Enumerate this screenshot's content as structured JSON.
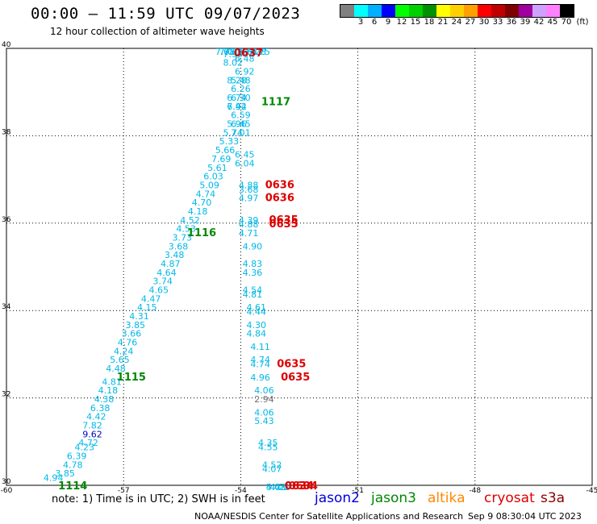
{
  "header": {
    "title": "00:00 – 11:59 UTC 09/07/2023",
    "subtitle": "12 hour collection of altimeter wave heights"
  },
  "legend": {
    "unit": "(ft)",
    "bins": [
      {
        "label": "",
        "color": "#808080"
      },
      {
        "label": "3",
        "color": "#00ffff"
      },
      {
        "label": "6",
        "color": "#00b0ff"
      },
      {
        "label": "9",
        "color": "#0000ff"
      },
      {
        "label": "12",
        "color": "#00ff00"
      },
      {
        "label": "15",
        "color": "#00d000"
      },
      {
        "label": "18",
        "color": "#009000"
      },
      {
        "label": "21",
        "color": "#ffff00"
      },
      {
        "label": "24",
        "color": "#ffd000"
      },
      {
        "label": "27",
        "color": "#ffa000"
      },
      {
        "label": "30",
        "color": "#ff0000"
      },
      {
        "label": "33",
        "color": "#c00000"
      },
      {
        "label": "36",
        "color": "#800000"
      },
      {
        "label": "39",
        "color": "#a000a0"
      },
      {
        "label": "42",
        "color": "#d0a0ff"
      },
      {
        "label": "45",
        "color": "#ff80ff"
      },
      {
        "label": "70",
        "color": "#000000"
      }
    ]
  },
  "axes": {
    "x_ticks": [
      "-60",
      "-57",
      "-54",
      "-51",
      "-48",
      "-45"
    ],
    "y_ticks": [
      "40",
      "38",
      "36",
      "34",
      "32",
      "30"
    ],
    "x_range": [
      -60,
      -45
    ],
    "y_range": [
      30,
      40
    ]
  },
  "chart_data": {
    "type": "scatter",
    "passes": [
      {
        "color": "#00b8e8",
        "points": [
          {
            "x": -58.8,
            "y": 30.1,
            "v": "4.94"
          },
          {
            "x": -58.5,
            "y": 30.2,
            "v": "3.85"
          },
          {
            "x": -58.3,
            "y": 30.4,
            "v": "4.78"
          },
          {
            "x": -58.2,
            "y": 30.6,
            "v": "6.39"
          },
          {
            "x": -58.0,
            "y": 30.8,
            "v": "4.23"
          },
          {
            "x": -57.9,
            "y": 30.9,
            "v": "4.72"
          },
          {
            "x": -57.8,
            "y": 31.3,
            "v": "7.82"
          },
          {
            "x": -57.7,
            "y": 31.5,
            "v": "4.42"
          },
          {
            "x": -57.6,
            "y": 31.7,
            "v": "6.38"
          },
          {
            "x": -57.5,
            "y": 31.9,
            "v": "4.38"
          },
          {
            "x": -57.4,
            "y": 32.1,
            "v": "4.18"
          },
          {
            "x": -57.3,
            "y": 32.3,
            "v": "4.81"
          },
          {
            "x": -57.2,
            "y": 32.6,
            "v": "4.48"
          },
          {
            "x": -57.1,
            "y": 32.8,
            "v": "5.65"
          },
          {
            "x": -57.0,
            "y": 33.0,
            "v": "4.24"
          },
          {
            "x": -56.9,
            "y": 33.2,
            "v": "4.76"
          },
          {
            "x": -56.8,
            "y": 33.4,
            "v": "3.66"
          },
          {
            "x": -56.7,
            "y": 33.6,
            "v": "3.85"
          },
          {
            "x": -56.6,
            "y": 33.8,
            "v": "4.31"
          },
          {
            "x": -56.4,
            "y": 34.0,
            "v": "4.15"
          },
          {
            "x": -56.3,
            "y": 34.2,
            "v": "4.47"
          },
          {
            "x": -56.1,
            "y": 34.4,
            "v": "4.65"
          },
          {
            "x": -56.0,
            "y": 34.6,
            "v": "3.74"
          },
          {
            "x": -55.9,
            "y": 34.8,
            "v": "4.64"
          },
          {
            "x": -55.8,
            "y": 35.0,
            "v": "4.87"
          },
          {
            "x": -55.7,
            "y": 35.2,
            "v": "3.48"
          },
          {
            "x": -55.6,
            "y": 35.4,
            "v": "3.68"
          },
          {
            "x": -55.5,
            "y": 35.6,
            "v": "3.73"
          },
          {
            "x": -55.4,
            "y": 35.8,
            "v": "4.53"
          },
          {
            "x": -55.3,
            "y": 36.0,
            "v": "4.52"
          },
          {
            "x": -55.1,
            "y": 36.2,
            "v": "4.18"
          },
          {
            "x": -55.0,
            "y": 36.4,
            "v": "4.70"
          },
          {
            "x": -54.9,
            "y": 36.6,
            "v": "4.74"
          },
          {
            "x": -54.8,
            "y": 36.8,
            "v": "5.09"
          },
          {
            "x": -54.7,
            "y": 37.0,
            "v": "6.03"
          },
          {
            "x": -54.6,
            "y": 37.2,
            "v": "5.61"
          },
          {
            "x": -54.5,
            "y": 37.4,
            "v": "7.69"
          },
          {
            "x": -54.4,
            "y": 37.6,
            "v": "5.66"
          },
          {
            "x": -54.3,
            "y": 37.8,
            "v": "5.33"
          },
          {
            "x": -54.2,
            "y": 38.0,
            "v": "5.74"
          },
          {
            "x": -54.1,
            "y": 38.2,
            "v": "5.96"
          },
          {
            "x": -54.0,
            "y": 38.4,
            "v": "6.59"
          },
          {
            "x": -54.1,
            "y": 38.6,
            "v": "7.42"
          },
          {
            "x": -54.1,
            "y": 38.8,
            "v": "6.74"
          },
          {
            "x": -54.1,
            "y": 39.2,
            "v": "8.28"
          },
          {
            "x": -54.2,
            "y": 39.6,
            "v": "8.02"
          },
          {
            "x": -54.2,
            "y": 39.8,
            "v": "7.90"
          },
          {
            "x": -54.2,
            "y": 40.0,
            "v": "7.79"
          },
          {
            "x": -54.3,
            "y": 40.3,
            "v": "7.01"
          },
          {
            "x": -54.4,
            "y": 40.5,
            "v": "7.08"
          }
        ]
      },
      {
        "color": "#00b8e8",
        "points": [
          {
            "x": -53.5,
            "y": 40.5,
            "v": "6.75"
          },
          {
            "x": -53.6,
            "y": 40.3,
            "v": "6.28"
          },
          {
            "x": -53.7,
            "y": 40.1,
            "v": "6.61"
          },
          {
            "x": -53.8,
            "y": 39.9,
            "v": "6.81"
          },
          {
            "x": -53.9,
            "y": 39.7,
            "v": "6.48"
          },
          {
            "x": -53.9,
            "y": 39.4,
            "v": "6.92"
          },
          {
            "x": -54.0,
            "y": 39.2,
            "v": "5.48"
          },
          {
            "x": -54.0,
            "y": 39.0,
            "v": "6.26"
          },
          {
            "x": -54.0,
            "y": 38.8,
            "v": "6.30"
          },
          {
            "x": -54.1,
            "y": 38.6,
            "v": "6.94"
          },
          {
            "x": -54.0,
            "y": 38.2,
            "v": "6.45"
          },
          {
            "x": -54.0,
            "y": 38.0,
            "v": "7.01"
          },
          {
            "x": -53.9,
            "y": 37.5,
            "v": "6.45"
          },
          {
            "x": -53.9,
            "y": 37.3,
            "v": "6.04"
          },
          {
            "x": -53.8,
            "y": 36.8,
            "v": "4.88"
          },
          {
            "x": -53.8,
            "y": 36.7,
            "v": "3.68"
          },
          {
            "x": -53.8,
            "y": 36.5,
            "v": "4.97"
          },
          {
            "x": -53.8,
            "y": 36.0,
            "v": "4.39"
          },
          {
            "x": -53.8,
            "y": 35.9,
            "v": "4.88"
          },
          {
            "x": -53.8,
            "y": 35.7,
            "v": "4.71"
          },
          {
            "x": -53.7,
            "y": 35.4,
            "v": "4.90"
          },
          {
            "x": -53.7,
            "y": 35.0,
            "v": "4.83"
          },
          {
            "x": -53.7,
            "y": 34.8,
            "v": "4.36"
          },
          {
            "x": -53.7,
            "y": 34.4,
            "v": "4.54"
          },
          {
            "x": -53.7,
            "y": 34.3,
            "v": "4.81"
          },
          {
            "x": -53.6,
            "y": 34.0,
            "v": "4.61"
          },
          {
            "x": -53.6,
            "y": 33.9,
            "v": "4.44"
          },
          {
            "x": -53.6,
            "y": 33.6,
            "v": "4.30"
          },
          {
            "x": -53.6,
            "y": 33.4,
            "v": "4.84"
          },
          {
            "x": -53.5,
            "y": 33.1,
            "v": "4.11"
          },
          {
            "x": -53.5,
            "y": 32.8,
            "v": "4.74"
          },
          {
            "x": -53.5,
            "y": 32.7,
            "v": "4.74"
          },
          {
            "x": -53.5,
            "y": 32.4,
            "v": "4.96"
          },
          {
            "x": -53.4,
            "y": 32.1,
            "v": "4.06"
          },
          {
            "x": -53.4,
            "y": 31.6,
            "v": "4.06"
          },
          {
            "x": -53.4,
            "y": 31.4,
            "v": "5.43"
          },
          {
            "x": -53.3,
            "y": 30.9,
            "v": "4.35"
          },
          {
            "x": -53.3,
            "y": 30.8,
            "v": "4.55"
          },
          {
            "x": -53.2,
            "y": 30.4,
            "v": "4.52"
          },
          {
            "x": -53.2,
            "y": 30.3,
            "v": "4.07"
          },
          {
            "x": -53.1,
            "y": 29.8,
            "v": "5.42"
          },
          {
            "x": -53.1,
            "y": 29.6,
            "v": "4.03"
          },
          {
            "x": -53.0,
            "y": 29.3,
            "v": "4.22"
          }
        ]
      },
      {
        "color": "#0000c0",
        "points": [
          {
            "x": -57.8,
            "y": 31.1,
            "v": "9.62"
          }
        ]
      },
      {
        "color": "#707070",
        "points": [
          {
            "x": -53.4,
            "y": 31.9,
            "v": "2.94"
          }
        ]
      }
    ],
    "time_labels": [
      {
        "text": "0637",
        "x": -53.8,
        "y": 40.5,
        "color": "#dd0000"
      },
      {
        "text": "1117",
        "x": -53.1,
        "y": 38.7,
        "color": "#008800"
      },
      {
        "text": "0636",
        "x": -53.0,
        "y": 36.8,
        "color": "#dd0000"
      },
      {
        "text": "0636",
        "x": -53.0,
        "y": 36.5,
        "color": "#dd0000"
      },
      {
        "text": "0635",
        "x": -52.9,
        "y": 36.0,
        "color": "#dd0000"
      },
      {
        "text": "0635",
        "x": -52.9,
        "y": 35.9,
        "color": "#dd0000"
      },
      {
        "text": "1116",
        "x": -55.0,
        "y": 35.7,
        "color": "#008800"
      },
      {
        "text": "0635",
        "x": -52.7,
        "y": 32.7,
        "color": "#dd0000"
      },
      {
        "text": "0635",
        "x": -52.6,
        "y": 32.4,
        "color": "#dd0000"
      },
      {
        "text": "1115",
        "x": -56.8,
        "y": 32.4,
        "color": "#008800"
      },
      {
        "text": "0634",
        "x": -52.5,
        "y": 29.8,
        "color": "#dd0000"
      },
      {
        "text": "0634",
        "x": -52.5,
        "y": 29.6,
        "color": "#dd0000"
      },
      {
        "text": "0634",
        "x": -52.4,
        "y": 29.3,
        "color": "#dd0000"
      },
      {
        "text": "1114",
        "x": -58.3,
        "y": 29.3,
        "color": "#008800"
      }
    ]
  },
  "footer": {
    "note": "note: 1) Time is in UTC; 2) SWH is in feet",
    "satellites": [
      {
        "name": "jason2",
        "color": "#0000dd"
      },
      {
        "name": "jason3",
        "color": "#008800"
      },
      {
        "name": "altika",
        "color": "#ff8800"
      },
      {
        "name": "cryosat",
        "color": "#dd0000"
      },
      {
        "name": "s3a",
        "color": "#880000"
      }
    ],
    "credit": "NOAA/NESDIS Center for Satellite Applications and Research",
    "timestamp": "Sep  9 08:30:04 UTC 2023"
  }
}
